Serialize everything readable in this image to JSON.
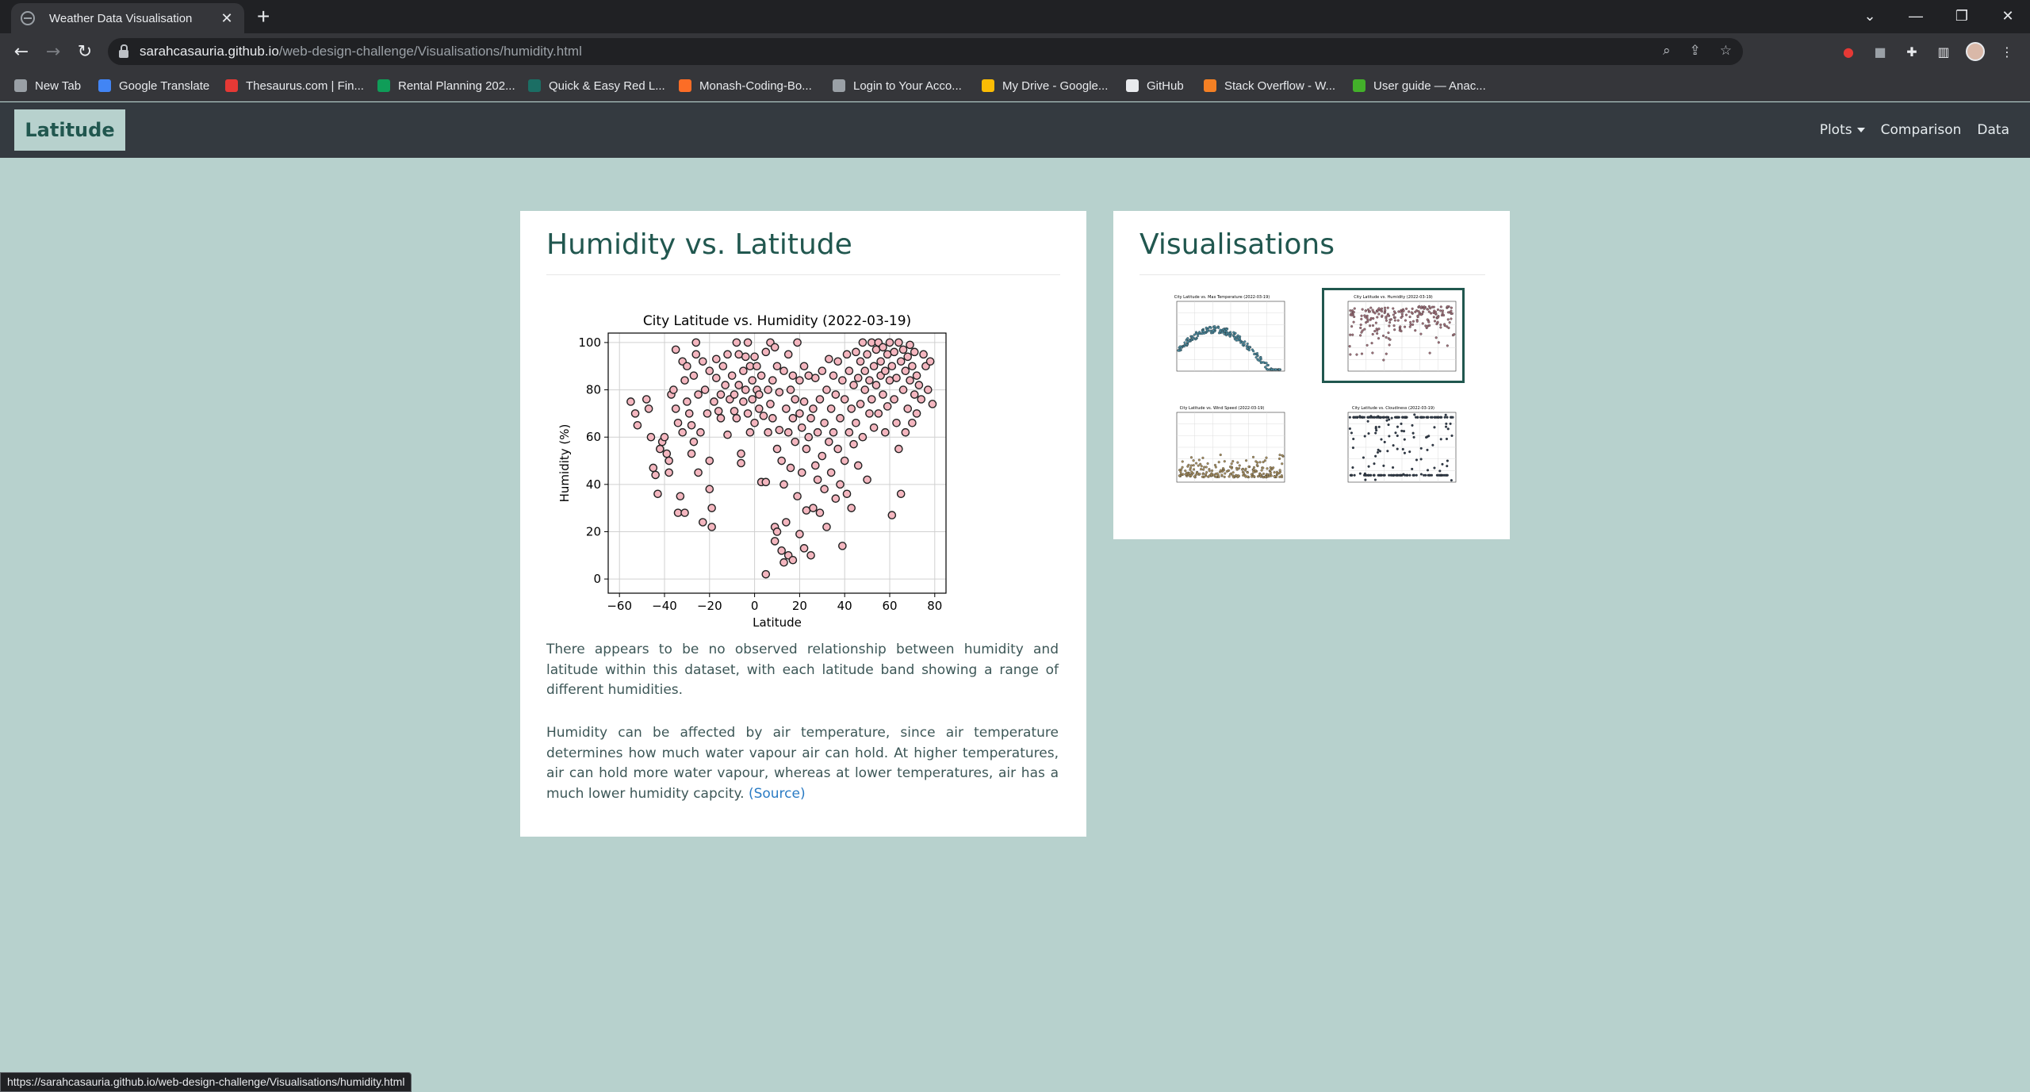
{
  "browser": {
    "tab_title": "Weather Data Visualisation",
    "tab_close": "✕",
    "new_tab": "+",
    "url_host": "sarahcasauria.github.io",
    "url_path": "/web-design-challenge/Visualisations/humidity.html",
    "status_url": "https://sarahcasauria.github.io/web-design-challenge/Visualisations/humidity.html",
    "bookmarks": [
      {
        "label": "New Tab",
        "icon": "globe-icon",
        "color": "#9aa0a6"
      },
      {
        "label": "Google Translate",
        "icon": "translate-icon",
        "color": "#4285f4"
      },
      {
        "label": "Thesaurus.com | Fin...",
        "icon": "thesaurus-icon",
        "color": "#e53935"
      },
      {
        "label": "Rental Planning 202...",
        "icon": "sheets-icon",
        "color": "#0f9d58"
      },
      {
        "label": "Quick & Easy Red L...",
        "icon": "recipe-icon",
        "color": "#1b6e64"
      },
      {
        "label": "Monash-Coding-Bo...",
        "icon": "gitlab-icon",
        "color": "#fc6d26"
      },
      {
        "label": "Login to Your Acco...",
        "icon": "globe-icon",
        "color": "#9aa0a6"
      },
      {
        "label": "My Drive - Google...",
        "icon": "drive-icon",
        "color": "#fbbc04"
      },
      {
        "label": "GitHub",
        "icon": "github-icon",
        "color": "#e8eaed"
      },
      {
        "label": "Stack Overflow - W...",
        "icon": "stackoverflow-icon",
        "color": "#f48024"
      },
      {
        "label": "User guide — Anac...",
        "icon": "anaconda-icon",
        "color": "#43b02a"
      }
    ]
  },
  "navbar": {
    "brand": "Latitude",
    "links": [
      {
        "label": "Plots",
        "dropdown": true
      },
      {
        "label": "Comparison"
      },
      {
        "label": "Data"
      }
    ]
  },
  "main": {
    "title": "Humidity vs. Latitude",
    "paragraph1": "There appears to be no observed relationship between humidity and latitude within this dataset, with each latitude band showing a range of different humidities.",
    "paragraph2": "Humidity can be affected by air temperature, since air temperature determines how much water vapour air can hold. At higher temperatures, air can hold more water vapour, whereas at lower temperatures, air has a much lower humidity capcity.",
    "source_link": "(Source)"
  },
  "sidebar": {
    "title": "Visualisations",
    "thumbnails": [
      {
        "name": "thumb-max-temperature",
        "title": "City Latitude vs. Max Temperature (2022-03-19)",
        "color": "#4a8ba0",
        "active": false
      },
      {
        "name": "thumb-humidity",
        "title": "City Latitude vs. Humidity (2022-03-19)",
        "color": "#a0707a",
        "active": true
      },
      {
        "name": "thumb-wind-speed",
        "title": "City Latitude vs. Wind Speed (2022-03-19)",
        "color": "#a89060",
        "active": false
      },
      {
        "name": "thumb-cloudiness",
        "title": "City Latitude vs. Cloudiness (2022-03-19)",
        "color": "#2e3a4a",
        "active": false
      }
    ]
  },
  "chart_data": {
    "type": "scatter",
    "title": "City Latitude vs. Humidity (2022-03-19)",
    "xlabel": "Latitude",
    "ylabel": "Humidity (%)",
    "xlim": [
      -65,
      85
    ],
    "ylim": [
      -6,
      104
    ],
    "xticks": [
      -60,
      -40,
      -20,
      0,
      20,
      40,
      60,
      80
    ],
    "yticks": [
      0,
      20,
      40,
      60,
      80,
      100
    ],
    "grid": true,
    "marker_color": "#f4b6bf",
    "marker_edge": "#222222",
    "series": [
      {
        "points": [
          [
            -55,
            75
          ],
          [
            -53,
            70
          ],
          [
            -52,
            65
          ],
          [
            -48,
            76
          ],
          [
            -47,
            72
          ],
          [
            -46,
            60
          ],
          [
            -45,
            47
          ],
          [
            -44,
            44
          ],
          [
            -43,
            36
          ],
          [
            -42,
            55
          ],
          [
            -41,
            58
          ],
          [
            -40,
            60
          ],
          [
            -39,
            53
          ],
          [
            -38,
            50
          ],
          [
            -38,
            45
          ],
          [
            -37,
            78
          ],
          [
            -36,
            80
          ],
          [
            -35,
            97
          ],
          [
            -35,
            72
          ],
          [
            -34,
            66
          ],
          [
            -34,
            28
          ],
          [
            -33,
            35
          ],
          [
            -32,
            92
          ],
          [
            -32,
            62
          ],
          [
            -31,
            84
          ],
          [
            -31,
            28
          ],
          [
            -30,
            90
          ],
          [
            -30,
            75
          ],
          [
            -29,
            70
          ],
          [
            -28,
            65
          ],
          [
            -28,
            53
          ],
          [
            -27,
            86
          ],
          [
            -27,
            58
          ],
          [
            -26,
            95
          ],
          [
            -26,
            100
          ],
          [
            -25,
            78
          ],
          [
            -25,
            45
          ],
          [
            -24,
            62
          ],
          [
            -23,
            92
          ],
          [
            -23,
            24
          ],
          [
            -22,
            80
          ],
          [
            -21,
            70
          ],
          [
            -20,
            88
          ],
          [
            -20,
            50
          ],
          [
            -20,
            38
          ],
          [
            -19,
            30
          ],
          [
            -19,
            22
          ],
          [
            -18,
            75
          ],
          [
            -17,
            93
          ],
          [
            -17,
            85
          ],
          [
            -16,
            71
          ],
          [
            -15,
            78
          ],
          [
            -15,
            68
          ],
          [
            -14,
            90
          ],
          [
            -13,
            82
          ],
          [
            -12,
            95
          ],
          [
            -12,
            61
          ],
          [
            -11,
            76
          ],
          [
            -10,
            86
          ],
          [
            -9,
            78
          ],
          [
            -9,
            71
          ],
          [
            -8,
            100
          ],
          [
            -8,
            68
          ],
          [
            -7,
            95
          ],
          [
            -7,
            82
          ],
          [
            -6,
            53
          ],
          [
            -6,
            49
          ],
          [
            -5,
            88
          ],
          [
            -5,
            75
          ],
          [
            -4,
            94
          ],
          [
            -4,
            80
          ],
          [
            -3,
            100
          ],
          [
            -3,
            70
          ],
          [
            -2,
            90
          ],
          [
            -2,
            62
          ],
          [
            -1,
            84
          ],
          [
            -1,
            76
          ],
          [
            0,
            94
          ],
          [
            0,
            66
          ],
          [
            1,
            90
          ],
          [
            1,
            80
          ],
          [
            2,
            78
          ],
          [
            2,
            72
          ],
          [
            3,
            86
          ],
          [
            3,
            41
          ],
          [
            4,
            69
          ],
          [
            5,
            96
          ],
          [
            5,
            41
          ],
          [
            5,
            2
          ],
          [
            6,
            80
          ],
          [
            6,
            62
          ],
          [
            7,
            100
          ],
          [
            7,
            74
          ],
          [
            8,
            84
          ],
          [
            8,
            68
          ],
          [
            9,
            98
          ],
          [
            9,
            22
          ],
          [
            9,
            16
          ],
          [
            10,
            90
          ],
          [
            10,
            55
          ],
          [
            10,
            20
          ],
          [
            11,
            79
          ],
          [
            11,
            63
          ],
          [
            12,
            50
          ],
          [
            12,
            12
          ],
          [
            13,
            88
          ],
          [
            13,
            40
          ],
          [
            13,
            7
          ],
          [
            14,
            72
          ],
          [
            14,
            24
          ],
          [
            15,
            95
          ],
          [
            15,
            62
          ],
          [
            15,
            10
          ],
          [
            16,
            80
          ],
          [
            16,
            47
          ],
          [
            17,
            86
          ],
          [
            17,
            68
          ],
          [
            17,
            8
          ],
          [
            18,
            76
          ],
          [
            18,
            58
          ],
          [
            19,
            100
          ],
          [
            19,
            35
          ],
          [
            20,
            84
          ],
          [
            20,
            70
          ],
          [
            20,
            19
          ],
          [
            21,
            64
          ],
          [
            21,
            45
          ],
          [
            22,
            90
          ],
          [
            22,
            75
          ],
          [
            22,
            13
          ],
          [
            23,
            55
          ],
          [
            23,
            29
          ],
          [
            24,
            86
          ],
          [
            24,
            60
          ],
          [
            25,
            68
          ],
          [
            25,
            10
          ],
          [
            26,
            30
          ],
          [
            26,
            72
          ],
          [
            27,
            48
          ],
          [
            27,
            85
          ],
          [
            28,
            62
          ],
          [
            28,
            42
          ],
          [
            29,
            28
          ],
          [
            29,
            76
          ],
          [
            30,
            52
          ],
          [
            30,
            88
          ],
          [
            31,
            38
          ],
          [
            31,
            66
          ],
          [
            32,
            22
          ],
          [
            32,
            80
          ],
          [
            33,
            58
          ],
          [
            33,
            93
          ],
          [
            34,
            45
          ],
          [
            34,
            72
          ],
          [
            35,
            62
          ],
          [
            35,
            86
          ],
          [
            36,
            34
          ],
          [
            36,
            78
          ],
          [
            37,
            55
          ],
          [
            37,
            92
          ],
          [
            38,
            40
          ],
          [
            38,
            68
          ],
          [
            39,
            14
          ],
          [
            39,
            84
          ],
          [
            40,
            50
          ],
          [
            40,
            76
          ],
          [
            41,
            95
          ],
          [
            41,
            36
          ],
          [
            42,
            62
          ],
          [
            42,
            88
          ],
          [
            43,
            30
          ],
          [
            43,
            72
          ],
          [
            44,
            82
          ],
          [
            44,
            57
          ],
          [
            45,
            96
          ],
          [
            45,
            66
          ],
          [
            46,
            85
          ],
          [
            46,
            48
          ],
          [
            47,
            92
          ],
          [
            47,
            74
          ],
          [
            48,
            100
          ],
          [
            48,
            60
          ],
          [
            49,
            88
          ],
          [
            49,
            80
          ],
          [
            50,
            95
          ],
          [
            50,
            42
          ],
          [
            51,
            70
          ],
          [
            51,
            84
          ],
          [
            52,
            100
          ],
          [
            52,
            76
          ],
          [
            53,
            90
          ],
          [
            53,
            64
          ],
          [
            54,
            97
          ],
          [
            54,
            82
          ],
          [
            55,
            100
          ],
          [
            55,
            70
          ],
          [
            56,
            86
          ],
          [
            56,
            92
          ],
          [
            57,
            78
          ],
          [
            57,
            98
          ],
          [
            58,
            88
          ],
          [
            58,
            62
          ],
          [
            59,
            95
          ],
          [
            59,
            73
          ],
          [
            60,
            100
          ],
          [
            60,
            84
          ],
          [
            61,
            90
          ],
          [
            61,
            27
          ],
          [
            62,
            76
          ],
          [
            62,
            96
          ],
          [
            63,
            85
          ],
          [
            63,
            66
          ],
          [
            64,
            100
          ],
          [
            64,
            55
          ],
          [
            65,
            92
          ],
          [
            65,
            36
          ],
          [
            66,
            80
          ],
          [
            66,
            97
          ],
          [
            67,
            88
          ],
          [
            67,
            62
          ],
          [
            68,
            94
          ],
          [
            68,
            72
          ],
          [
            69,
            99
          ],
          [
            69,
            84
          ],
          [
            70,
            90
          ],
          [
            70,
            66
          ],
          [
            71,
            78
          ],
          [
            71,
            96
          ],
          [
            72,
            86
          ],
          [
            72,
            70
          ],
          [
            73,
            82
          ],
          [
            74,
            76
          ],
          [
            75,
            95
          ],
          [
            76,
            90
          ],
          [
            77,
            80
          ],
          [
            78,
            92
          ],
          [
            79,
            74
          ]
        ]
      }
    ]
  }
}
